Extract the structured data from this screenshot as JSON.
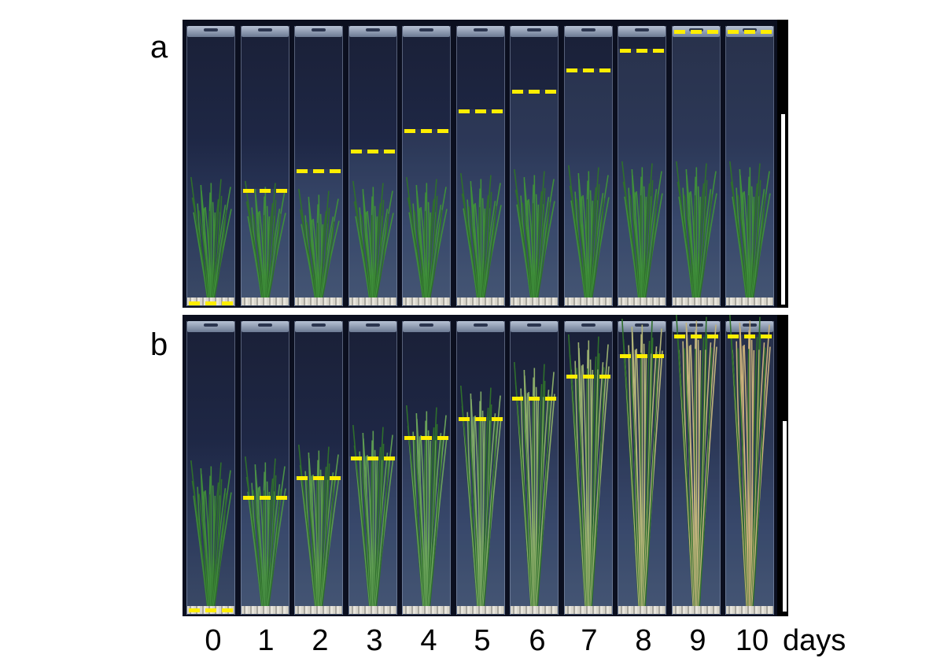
{
  "figure": {
    "panel_letters": [
      "a",
      "b"
    ],
    "day_labels": [
      "0",
      "1",
      "2",
      "3",
      "4",
      "5",
      "6",
      "7",
      "8",
      "9",
      "10"
    ],
    "unit_label": "days",
    "marker_color": "#ffee00",
    "scale_bar_color": "#ffffff",
    "background_color": "#ffffff"
  }
}
